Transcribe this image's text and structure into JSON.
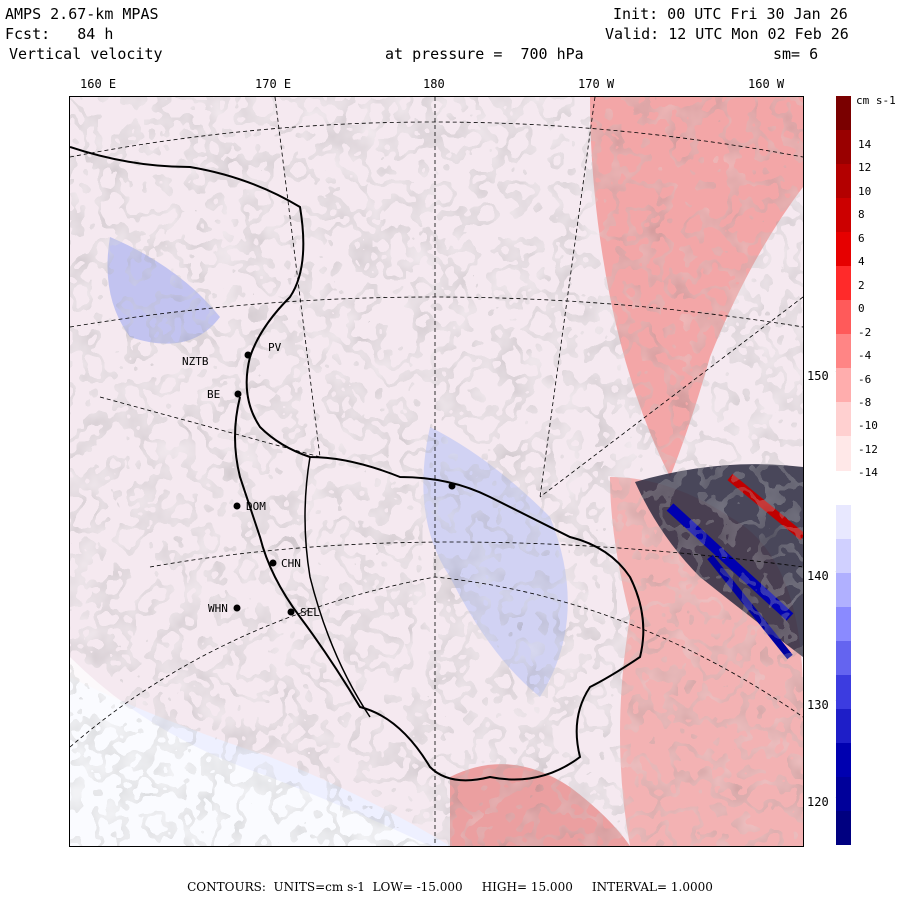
{
  "header": {
    "model": "AMPS 2.67-km MPAS",
    "fcst": "Fcst:   84 h",
    "field": "Vertical velocity",
    "pressure": "at pressure =  700 hPa",
    "init": "Init: 00 UTC Fri 30 Jan 26",
    "valid": "Valid: 12 UTC Mon 02 Feb 26",
    "smooth": "sm= 6"
  },
  "longitudes": [
    "160 E",
    "170 E",
    "180",
    "170 W",
    "160 W"
  ],
  "latitudes": [
    "150 W",
    "140 W",
    "130 W",
    "120 W"
  ],
  "colorbar": {
    "unit": "cm s-1",
    "ticks": [
      "14",
      "12",
      "10",
      "8",
      "6",
      "4",
      "2",
      "0",
      "-2",
      "-4",
      "-6",
      "-8",
      "-10",
      "-12",
      "-14"
    ],
    "colors": [
      "#7a0000",
      "#990000",
      "#b30000",
      "#cc0000",
      "#e60000",
      "#ff2a2a",
      "#ff5a5a",
      "#ff8585",
      "#ffadad",
      "#ffd0d0",
      "#ffe8e8",
      "#ffffff",
      "#e8e8ff",
      "#d0d0ff",
      "#b0b0ff",
      "#8a8aff",
      "#6464f0",
      "#3c3ce0",
      "#1e1ec8",
      "#0000b0",
      "#00009a",
      "#000080"
    ]
  },
  "stations": [
    "NZTB",
    "PV",
    "BE",
    "DOM",
    "CHN",
    "SEL",
    "WHN"
  ],
  "footer": {
    "label": "CONTOURS:",
    "units": "UNITS=cm s-1",
    "low": "LOW= -15.000",
    "high": "HIGH= 15.000",
    "interval": "INTERVAL= 1.0000"
  },
  "colors": {
    "positive": "#f4b8b8",
    "negative": "#c4c8f2",
    "neutral": "#eeeeff"
  }
}
